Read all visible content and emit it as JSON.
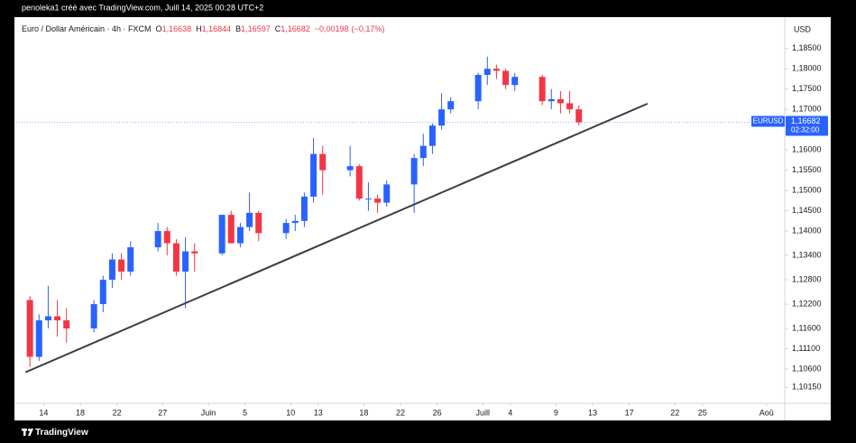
{
  "snapshot_caption": "penoleka1 créé avec TradingView.com, Juill 14, 2025 00:28 UTC+2",
  "footer_brand": "TradingView",
  "chart_data": {
    "type": "candlestick",
    "title": "Euro / Dollar Américain · 4h · FXCM",
    "ohlc_legend": [
      {
        "key": "O",
        "value": 1.16638,
        "label": "1,16638"
      },
      {
        "key": "H",
        "value": 1.16844,
        "label": "1,16844"
      },
      {
        "key": "B",
        "value": 1.16597,
        "label": "1,16597"
      },
      {
        "key": "C",
        "value": 1.16682,
        "label": "1,16682"
      }
    ],
    "change": {
      "value": -0.00198,
      "label": "−0,00198"
    },
    "change_pct": {
      "value": -0.17,
      "label": "(−0,17%)"
    },
    "currency": "USD",
    "symbol": "EURUSD",
    "last_price": {
      "value": 1.16682,
      "label": "1,16682"
    },
    "countdown": "02:32:00",
    "up_color": "#2962ff",
    "down_color": "#f23645",
    "grid": false,
    "x": [
      "2025-05-12",
      "2025-05-13",
      "2025-05-14",
      "2025-05-15",
      "2025-05-16",
      "2025-05-19",
      "2025-05-20",
      "2025-05-21",
      "2025-05-22",
      "2025-05-23",
      "2025-05-26",
      "2025-05-27",
      "2025-05-28",
      "2025-05-29",
      "2025-05-30",
      "2025-06-02",
      "2025-06-03",
      "2025-06-04",
      "2025-06-05",
      "2025-06-06",
      "2025-06-09",
      "2025-06-10",
      "2025-06-11",
      "2025-06-12",
      "2025-06-13",
      "2025-06-16",
      "2025-06-17",
      "2025-06-18",
      "2025-06-19",
      "2025-06-20",
      "2025-06-23",
      "2025-06-24",
      "2025-06-25",
      "2025-06-26",
      "2025-06-27",
      "2025-06-30",
      "2025-07-01",
      "2025-07-02",
      "2025-07-03",
      "2025-07-04",
      "2025-07-07",
      "2025-07-08",
      "2025-07-09",
      "2025-07-10",
      "2025-07-11"
    ],
    "open": [
      1.123,
      1.109,
      1.118,
      1.119,
      1.118,
      1.116,
      1.122,
      1.128,
      1.133,
      1.13,
      1.136,
      1.14,
      1.137,
      1.13,
      1.135,
      1.1345,
      1.144,
      1.137,
      1.141,
      1.1445,
      1.1395,
      1.142,
      1.1425,
      1.1485,
      1.159,
      1.155,
      1.156,
      1.148,
      1.148,
      1.147,
      1.1515,
      1.158,
      1.161,
      1.166,
      1.17,
      1.172,
      1.1785,
      1.18,
      1.1795,
      1.176,
      1.178,
      1.172,
      1.1725,
      1.1715,
      1.17
    ],
    "high": [
      1.124,
      1.1195,
      1.1265,
      1.123,
      1.121,
      1.123,
      1.129,
      1.1345,
      1.1345,
      1.1375,
      1.142,
      1.141,
      1.138,
      1.1385,
      1.137,
      1.144,
      1.145,
      1.142,
      1.1495,
      1.145,
      1.143,
      1.144,
      1.1495,
      1.163,
      1.161,
      1.161,
      1.1565,
      1.152,
      1.149,
      1.1525,
      1.159,
      1.164,
      1.1665,
      1.174,
      1.173,
      1.179,
      1.183,
      1.181,
      1.18,
      1.179,
      1.1785,
      1.175,
      1.1745,
      1.1745,
      1.171
    ],
    "low": [
      1.1065,
      1.108,
      1.116,
      1.114,
      1.1125,
      1.115,
      1.12,
      1.126,
      1.128,
      1.129,
      1.135,
      1.134,
      1.129,
      1.121,
      1.13,
      1.134,
      1.137,
      1.136,
      1.14,
      1.1375,
      1.138,
      1.14,
      1.141,
      1.147,
      1.149,
      1.1535,
      1.1475,
      1.145,
      1.1445,
      1.146,
      1.1445,
      1.156,
      1.159,
      1.165,
      1.169,
      1.17,
      1.176,
      1.1775,
      1.175,
      1.1745,
      1.171,
      1.17,
      1.169,
      1.169,
      1.166
    ],
    "close": [
      1.109,
      1.118,
      1.119,
      1.118,
      1.116,
      1.122,
      1.128,
      1.133,
      1.13,
      1.136,
      1.14,
      1.137,
      1.13,
      1.135,
      1.1345,
      1.144,
      1.137,
      1.141,
      1.1445,
      1.1395,
      1.142,
      1.1425,
      1.1485,
      1.159,
      1.155,
      1.156,
      1.148,
      1.148,
      1.147,
      1.1515,
      1.158,
      1.161,
      1.166,
      1.17,
      1.172,
      1.1785,
      1.18,
      1.1795,
      1.176,
      1.178,
      1.172,
      1.1725,
      1.1715,
      1.17,
      1.1668
    ],
    "trendline": {
      "x": [
        "2025-05-12",
        "2025-07-19"
      ],
      "y": [
        1.1052,
        1.1714
      ],
      "color": "#3d3d3d"
    },
    "xlim": [
      "2025-05-11",
      "2025-08-03"
    ],
    "xticks": [
      {
        "value": "2025-05-14",
        "label": "14"
      },
      {
        "value": "2025-05-18",
        "label": "18"
      },
      {
        "value": "2025-05-22",
        "label": "22"
      },
      {
        "value": "2025-05-27",
        "label": "27"
      },
      {
        "value": "2025-06-01",
        "label": "Juin"
      },
      {
        "value": "2025-06-05",
        "label": "5"
      },
      {
        "value": "2025-06-10",
        "label": "10"
      },
      {
        "value": "2025-06-13",
        "label": "13"
      },
      {
        "value": "2025-06-18",
        "label": "18"
      },
      {
        "value": "2025-06-22",
        "label": "22"
      },
      {
        "value": "2025-06-26",
        "label": "26"
      },
      {
        "value": "2025-07-01",
        "label": "Juill"
      },
      {
        "value": "2025-07-04",
        "label": "4"
      },
      {
        "value": "2025-07-09",
        "label": "9"
      },
      {
        "value": "2025-07-13",
        "label": "13"
      },
      {
        "value": "2025-07-17",
        "label": "17"
      },
      {
        "value": "2025-07-22",
        "label": "22"
      },
      {
        "value": "2025-07-25",
        "label": "25"
      },
      {
        "value": "2025-08-01",
        "label": "Aoû"
      }
    ],
    "ylim": [
      1.098,
      1.1925
    ],
    "yticks": [
      {
        "value": 1.185,
        "label": "1,18500"
      },
      {
        "value": 1.18,
        "label": "1,18000"
      },
      {
        "value": 1.175,
        "label": "1,17500"
      },
      {
        "value": 1.17,
        "label": "1,17000"
      },
      {
        "value": 1.16,
        "label": "1,16000"
      },
      {
        "value": 1.155,
        "label": "1,15500"
      },
      {
        "value": 1.15,
        "label": "1,15000"
      },
      {
        "value": 1.145,
        "label": "1,14500"
      },
      {
        "value": 1.14,
        "label": "1,14000"
      },
      {
        "value": 1.134,
        "label": "1,13400"
      },
      {
        "value": 1.128,
        "label": "1,12800"
      },
      {
        "value": 1.122,
        "label": "1,12200"
      },
      {
        "value": 1.116,
        "label": "1,11600"
      },
      {
        "value": 1.111,
        "label": "1,11100"
      },
      {
        "value": 1.106,
        "label": "1,10600"
      },
      {
        "value": 1.1015,
        "label": "1,10150"
      }
    ]
  }
}
